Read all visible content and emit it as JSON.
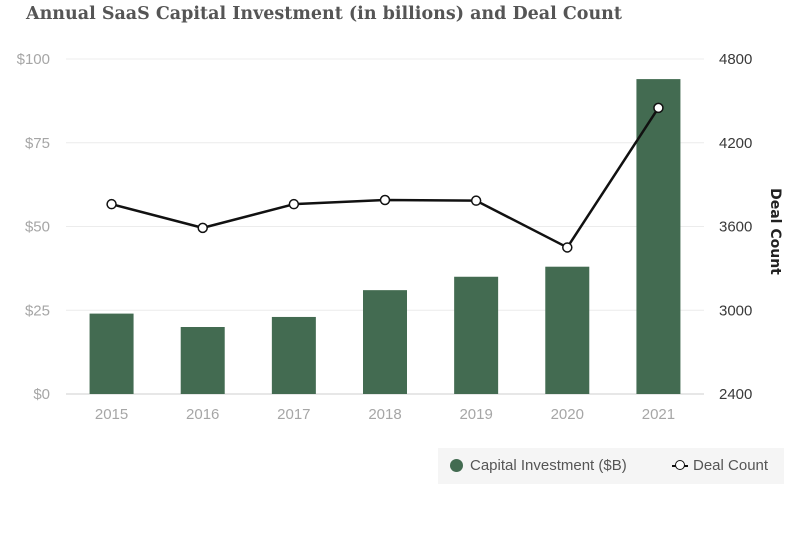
{
  "chart_data": {
    "type": "bar",
    "title": "Annual SaaS Capital Investment (in billions) and Deal Count",
    "categories": [
      "2015",
      "2016",
      "2017",
      "2018",
      "2019",
      "2020",
      "2021"
    ],
    "series": [
      {
        "name": "Capital Investment ($B)",
        "type": "bar",
        "axis": "left",
        "color": "#436b51",
        "values": [
          24,
          20,
          23,
          31,
          35,
          38,
          94
        ]
      },
      {
        "name": "Deal Count",
        "type": "line",
        "axis": "right",
        "color": "#111111",
        "values": [
          3760,
          3590,
          3760,
          3790,
          3785,
          3450,
          4450
        ]
      }
    ],
    "y_left": {
      "label": "",
      "ylim": [
        0,
        100
      ],
      "ticks": [
        0,
        25,
        50,
        75,
        100
      ],
      "tick_labels": [
        "$0",
        "$25",
        "$50",
        "$75",
        "$100"
      ]
    },
    "y_right": {
      "label": "Deal Count",
      "ylim": [
        2400,
        4800
      ],
      "ticks": [
        2400,
        3000,
        3600,
        4200,
        4800
      ],
      "tick_labels": [
        "2400",
        "3000",
        "3600",
        "4200",
        "4800"
      ]
    },
    "grid": true,
    "legend_position": "bottom-right"
  }
}
